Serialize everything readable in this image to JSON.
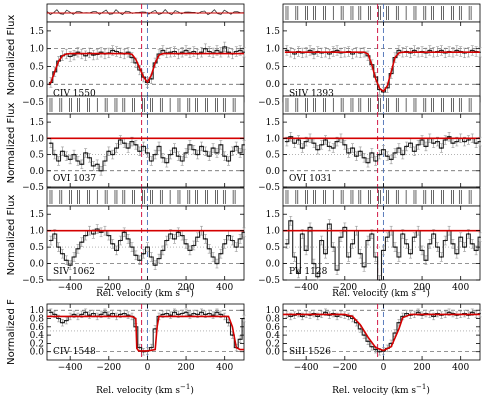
{
  "figure": {
    "ylabels": [
      "Normalized Flux",
      "Normalized Flux",
      "Normalized Flux",
      "Normalized F"
    ],
    "xlabel": "Rel. velocity (km s",
    "xlabel_sup": "−1",
    "xlabel_close": ")"
  },
  "chart_data": [
    {
      "type": "line",
      "panel": "CIV 1550",
      "label": "CIV 1550",
      "xlim": [
        -520,
        500
      ],
      "ylim": [
        -0.5,
        1.75
      ],
      "xticks": [
        "−400",
        "−200",
        "0",
        "200",
        "400"
      ],
      "yticks": [
        "−0.5",
        "0.0",
        "0.5",
        "1.0",
        "1.5"
      ],
      "top_strip": "continuum",
      "x": [
        -500,
        -480,
        -460,
        -440,
        -420,
        -400,
        -380,
        -360,
        -340,
        -320,
        -300,
        -280,
        -260,
        -240,
        -220,
        -200,
        -180,
        -160,
        -140,
        -120,
        -100,
        -80,
        -60,
        -40,
        -20,
        0,
        20,
        40,
        60,
        80,
        100,
        120,
        140,
        160,
        180,
        200,
        220,
        240,
        260,
        280,
        300,
        320,
        340,
        360,
        380,
        400,
        420,
        440,
        460,
        480,
        500
      ],
      "y": [
        0.05,
        0.35,
        0.65,
        0.8,
        0.85,
        0.78,
        0.82,
        0.9,
        0.85,
        0.8,
        0.88,
        0.82,
        0.84,
        0.9,
        0.85,
        0.88,
        0.95,
        0.92,
        0.88,
        0.85,
        0.9,
        0.75,
        0.6,
        0.4,
        0.2,
        0.05,
        0.15,
        0.6,
        0.85,
        0.95,
        0.88,
        0.9,
        0.92,
        0.85,
        0.9,
        0.95,
        0.88,
        0.92,
        0.85,
        0.9,
        1.0,
        0.92,
        0.88,
        0.95,
        0.9,
        1.05,
        0.9,
        0.85,
        0.92,
        0.95,
        0.9
      ],
      "model_x": [
        -510,
        -500,
        -480,
        -460,
        -440,
        -420,
        -400,
        -200,
        -100,
        -80,
        -60,
        -40,
        -20,
        0,
        20,
        40,
        60,
        80,
        100,
        300,
        500
      ],
      "model_y": [
        -0.02,
        0.05,
        0.35,
        0.65,
        0.8,
        0.85,
        0.86,
        0.86,
        0.86,
        0.84,
        0.7,
        0.45,
        0.2,
        0.06,
        0.25,
        0.6,
        0.82,
        0.86,
        0.86,
        0.86,
        0.86
      ]
    },
    {
      "type": "line",
      "panel": "SiIV 1393",
      "label": "SiIV 1393",
      "xlim": [
        -520,
        500
      ],
      "ylim": [
        -0.5,
        1.75
      ],
      "xticks": [
        "−400",
        "−200",
        "0",
        "200",
        "400"
      ],
      "yticks": [
        "−0.5",
        "0.0",
        "0.5",
        "1.0",
        "1.5"
      ],
      "top_strip": "ticks",
      "x": [
        -500,
        -480,
        -460,
        -440,
        -420,
        -400,
        -380,
        -360,
        -340,
        -320,
        -300,
        -280,
        -260,
        -240,
        -220,
        -200,
        -180,
        -160,
        -140,
        -120,
        -100,
        -80,
        -60,
        -40,
        -20,
        0,
        20,
        40,
        60,
        80,
        100,
        120,
        140,
        160,
        180,
        200,
        220,
        240,
        260,
        280,
        300,
        320,
        340,
        360,
        380,
        400,
        420,
        440,
        460,
        480,
        500
      ],
      "y": [
        0.95,
        0.9,
        0.85,
        0.92,
        0.88,
        0.9,
        0.95,
        0.85,
        0.92,
        0.88,
        0.9,
        0.85,
        0.92,
        0.95,
        0.88,
        0.9,
        0.92,
        0.85,
        0.9,
        0.88,
        0.9,
        0.8,
        0.55,
        0.2,
        -0.15,
        -0.22,
        -0.1,
        0.3,
        0.75,
        0.95,
        0.9,
        0.92,
        0.88,
        0.95,
        0.9,
        0.92,
        0.88,
        0.95,
        0.9,
        0.92,
        0.95,
        0.88,
        0.92,
        0.9,
        0.95,
        0.92,
        0.88,
        0.9,
        0.95,
        0.92,
        0.9
      ],
      "model_x": [
        -510,
        -100,
        -80,
        -60,
        -40,
        -20,
        0,
        20,
        40,
        60,
        80,
        100,
        500
      ],
      "model_y": [
        0.9,
        0.9,
        0.85,
        0.55,
        0.15,
        -0.12,
        -0.2,
        -0.05,
        0.35,
        0.75,
        0.88,
        0.9,
        0.9
      ]
    },
    {
      "type": "line",
      "panel": "OVI 1037",
      "label": "OVI 1037",
      "xlim": [
        -520,
        500
      ],
      "ylim": [
        -0.5,
        1.75
      ],
      "xticks": [
        "−400",
        "−200",
        "0",
        "200",
        "400"
      ],
      "yticks": [
        "−0.5",
        "0.0",
        "0.5",
        "1.0",
        "1.5"
      ],
      "top_strip": "ticks",
      "x": [
        -500,
        -480,
        -460,
        -440,
        -420,
        -400,
        -380,
        -360,
        -340,
        -320,
        -300,
        -280,
        -260,
        -240,
        -220,
        -200,
        -180,
        -160,
        -140,
        -120,
        -100,
        -80,
        -60,
        -40,
        -20,
        0,
        20,
        40,
        60,
        80,
        100,
        120,
        140,
        160,
        180,
        200,
        220,
        240,
        260,
        280,
        300,
        320,
        340,
        360,
        380,
        400,
        420,
        440,
        460,
        480,
        500
      ],
      "y": [
        0.85,
        0.5,
        0.3,
        0.6,
        0.45,
        0.35,
        0.5,
        0.3,
        0.2,
        0.55,
        0.4,
        0.15,
        0.2,
        0.0,
        0.3,
        0.6,
        0.5,
        0.7,
        0.95,
        0.85,
        0.7,
        0.9,
        0.8,
        0.6,
        0.75,
        0.55,
        0.3,
        0.5,
        0.75,
        0.4,
        0.25,
        0.5,
        0.7,
        0.45,
        0.3,
        0.55,
        0.8,
        0.65,
        0.5,
        0.75,
        0.6,
        0.45,
        0.7,
        0.55,
        0.8,
        0.45,
        0.3,
        0.6,
        0.75,
        0.55,
        0.8
      ],
      "model_x": [
        -520,
        500
      ],
      "model_y": [
        1.0,
        1.0
      ]
    },
    {
      "type": "line",
      "panel": "OVI 1031",
      "label": "OVI 1031",
      "xlim": [
        -520,
        500
      ],
      "ylim": [
        -0.5,
        1.75
      ],
      "xticks": [
        "−400",
        "−200",
        "0",
        "200",
        "400"
      ],
      "yticks": [
        "−0.5",
        "0.0",
        "0.5",
        "1.0",
        "1.5"
      ],
      "top_strip": "ticks",
      "x": [
        -500,
        -480,
        -460,
        -440,
        -420,
        -400,
        -380,
        -360,
        -340,
        -320,
        -300,
        -280,
        -260,
        -240,
        -220,
        -200,
        -180,
        -160,
        -140,
        -120,
        -100,
        -80,
        -60,
        -40,
        -20,
        0,
        20,
        40,
        60,
        80,
        100,
        120,
        140,
        160,
        180,
        200,
        220,
        240,
        260,
        280,
        300,
        320,
        340,
        360,
        380,
        400,
        420,
        440,
        460,
        480,
        500
      ],
      "y": [
        0.9,
        1.05,
        0.85,
        0.95,
        0.7,
        0.9,
        1.0,
        0.85,
        0.65,
        0.8,
        0.95,
        0.75,
        0.7,
        0.9,
        1.0,
        0.8,
        0.55,
        0.7,
        0.45,
        0.6,
        0.4,
        0.25,
        0.55,
        0.3,
        0.5,
        0.65,
        0.45,
        0.35,
        0.55,
        0.7,
        0.5,
        0.75,
        0.85,
        0.6,
        0.8,
        0.95,
        0.75,
        1.0,
        0.85,
        0.9,
        0.7,
        0.95,
        1.05,
        0.85,
        0.9,
        1.0,
        0.9,
        0.95,
        1.0,
        0.85,
        0.9
      ],
      "model_x": [
        -520,
        500
      ],
      "model_y": [
        1.0,
        1.0
      ]
    },
    {
      "type": "line",
      "panel": "SIV 1062",
      "label": "SIV 1062",
      "xlim": [
        -520,
        500
      ],
      "ylim": [
        -0.5,
        1.75
      ],
      "xticks": [
        "−400",
        "−200",
        "0",
        "200",
        "400"
      ],
      "yticks": [
        "−0.5",
        "0.0",
        "0.5",
        "1.0",
        "1.5"
      ],
      "top_strip": "ticks",
      "x": [
        -500,
        -480,
        -460,
        -440,
        -420,
        -400,
        -380,
        -360,
        -340,
        -320,
        -300,
        -280,
        -260,
        -240,
        -220,
        -200,
        -180,
        -160,
        -140,
        -120,
        -100,
        -80,
        -60,
        -40,
        -20,
        0,
        20,
        40,
        60,
        80,
        100,
        120,
        140,
        160,
        180,
        200,
        220,
        240,
        260,
        280,
        300,
        320,
        340,
        360,
        380,
        400,
        420,
        440,
        460,
        480,
        500
      ],
      "y": [
        0.7,
        0.9,
        0.5,
        0.3,
        0.1,
        -0.05,
        0.2,
        0.45,
        0.65,
        0.85,
        1.0,
        0.9,
        1.05,
        0.95,
        1.0,
        0.85,
        0.6,
        0.4,
        0.7,
        0.95,
        0.75,
        0.5,
        0.25,
        0.1,
        0.3,
        0.5,
        0.2,
        -0.05,
        0.15,
        0.4,
        0.7,
        0.9,
        0.75,
        0.95,
        0.85,
        0.6,
        0.4,
        0.55,
        0.8,
        1.0,
        0.75,
        0.45,
        0.2,
        0.0,
        0.3,
        0.6,
        0.85,
        0.7,
        0.5,
        0.75,
        0.95
      ],
      "model_x": [
        -520,
        500
      ],
      "model_y": [
        1.0,
        1.0
      ]
    },
    {
      "type": "line",
      "panel": "PV 1128",
      "label": "PV 1128",
      "xlim": [
        -520,
        500
      ],
      "ylim": [
        -0.5,
        1.75
      ],
      "xticks": [
        "−400",
        "−200",
        "0",
        "200",
        "400"
      ],
      "yticks": [
        "−0.5",
        "0.0",
        "0.5",
        "1.0",
        "1.5"
      ],
      "top_strip": "ticks",
      "x": [
        -500,
        -480,
        -460,
        -440,
        -420,
        -400,
        -380,
        -360,
        -340,
        -320,
        -300,
        -280,
        -260,
        -240,
        -220,
        -200,
        -180,
        -160,
        -140,
        -120,
        -100,
        -80,
        -60,
        -40,
        -20,
        0,
        20,
        40,
        60,
        80,
        100,
        120,
        140,
        160,
        180,
        200,
        220,
        240,
        260,
        280,
        300,
        320,
        340,
        360,
        380,
        400,
        420,
        440,
        460,
        480,
        500
      ],
      "y": [
        0.6,
        1.3,
        0.2,
        -0.3,
        0.9,
        0.4,
        1.1,
        0.0,
        -0.4,
        0.7,
        0.3,
        1.2,
        0.5,
        -0.2,
        0.8,
        1.1,
        0.2,
        0.6,
        1.0,
        0.3,
        -0.1,
        0.7,
        0.9,
        0.2,
        -0.5,
        0.4,
        0.8,
        1.0,
        0.5,
        0.2,
        0.9,
        0.6,
        0.3,
        0.8,
        1.0,
        0.4,
        0.1,
        0.6,
        0.9,
        0.5,
        0.2,
        0.7,
        1.0,
        0.6,
        0.3,
        0.8,
        0.5,
        0.9,
        0.6,
        0.4,
        0.8
      ],
      "model_x": [
        -520,
        500
      ],
      "model_y": [
        1.0,
        1.0
      ]
    },
    {
      "type": "line",
      "panel": "CIV 1548",
      "label": "CIV 1548",
      "xlim": [
        -520,
        500
      ],
      "ylim": [
        -0.2,
        1.15
      ],
      "xticks": [
        "−400",
        "−200",
        "0",
        "200",
        "400"
      ],
      "yticks": [
        "0.0",
        "0.2",
        "0.4",
        "0.6",
        "0.8",
        "1.0"
      ],
      "top_strip": "none",
      "x": [
        -500,
        -480,
        -460,
        -440,
        -420,
        -400,
        -380,
        -360,
        -340,
        -320,
        -300,
        -280,
        -260,
        -240,
        -220,
        -200,
        -180,
        -160,
        -140,
        -120,
        -100,
        -80,
        -60,
        -40,
        -20,
        0,
        20,
        40,
        60,
        80,
        100,
        120,
        140,
        160,
        180,
        200,
        220,
        240,
        260,
        280,
        300,
        320,
        340,
        360,
        380,
        400,
        420,
        440,
        460,
        480,
        500
      ],
      "y": [
        0.95,
        0.9,
        0.8,
        0.7,
        0.75,
        0.85,
        0.9,
        0.85,
        0.9,
        0.95,
        0.88,
        0.92,
        0.85,
        0.9,
        0.95,
        0.88,
        0.92,
        0.85,
        0.9,
        0.92,
        0.88,
        0.85,
        0.6,
        0.1,
        0.0,
        0.02,
        0.1,
        0.55,
        0.85,
        0.9,
        0.92,
        0.88,
        0.95,
        0.9,
        0.92,
        0.95,
        0.88,
        0.92,
        0.9,
        0.95,
        0.9,
        0.92,
        0.88,
        0.95,
        0.9,
        0.85,
        0.7,
        0.4,
        0.1,
        0.3,
        0.8
      ],
      "model_x": [
        -520,
        -80,
        -60,
        -55,
        -45,
        0,
        40,
        50,
        60,
        80,
        420,
        440,
        460,
        480,
        500
      ],
      "model_y": [
        0.85,
        0.85,
        0.8,
        0.08,
        0.02,
        0.02,
        0.05,
        0.6,
        0.85,
        0.85,
        0.85,
        0.6,
        0.1,
        0.05,
        0.05
      ]
    },
    {
      "type": "line",
      "panel": "SiII 1526",
      "label": "SiII 1526",
      "xlim": [
        -520,
        500
      ],
      "ylim": [
        -0.2,
        1.15
      ],
      "xticks": [
        "−400",
        "−200",
        "0",
        "200",
        "400"
      ],
      "yticks": [
        "0.0",
        "0.2",
        "0.4",
        "0.6",
        "0.8",
        "1.0"
      ],
      "top_strip": "none",
      "x": [
        -500,
        -480,
        -460,
        -440,
        -420,
        -400,
        -380,
        -360,
        -340,
        -320,
        -300,
        -280,
        -260,
        -240,
        -220,
        -200,
        -180,
        -160,
        -140,
        -120,
        -100,
        -80,
        -60,
        -40,
        -20,
        0,
        20,
        40,
        60,
        80,
        100,
        120,
        140,
        160,
        180,
        200,
        220,
        240,
        260,
        280,
        300,
        320,
        340,
        360,
        380,
        400,
        420,
        440,
        460,
        480,
        500
      ],
      "y": [
        0.9,
        0.85,
        0.88,
        0.92,
        0.85,
        0.9,
        0.88,
        0.92,
        0.85,
        0.9,
        0.95,
        0.88,
        0.92,
        0.85,
        0.9,
        0.88,
        0.85,
        0.8,
        0.7,
        0.55,
        0.4,
        0.25,
        0.12,
        0.05,
        0.0,
        0.02,
        0.08,
        0.2,
        0.45,
        0.7,
        0.85,
        0.92,
        0.88,
        0.9,
        0.95,
        0.88,
        0.92,
        0.9,
        0.85,
        0.92,
        0.88,
        0.9,
        0.95,
        0.92,
        0.88,
        0.9,
        0.92,
        0.88,
        0.95,
        0.9,
        0.92
      ],
      "model_x": [
        -520,
        -200,
        -160,
        -120,
        -80,
        -40,
        0,
        40,
        80,
        100,
        140,
        500
      ],
      "model_y": [
        0.9,
        0.9,
        0.85,
        0.65,
        0.35,
        0.1,
        0.03,
        0.12,
        0.55,
        0.82,
        0.9,
        0.9
      ]
    }
  ]
}
